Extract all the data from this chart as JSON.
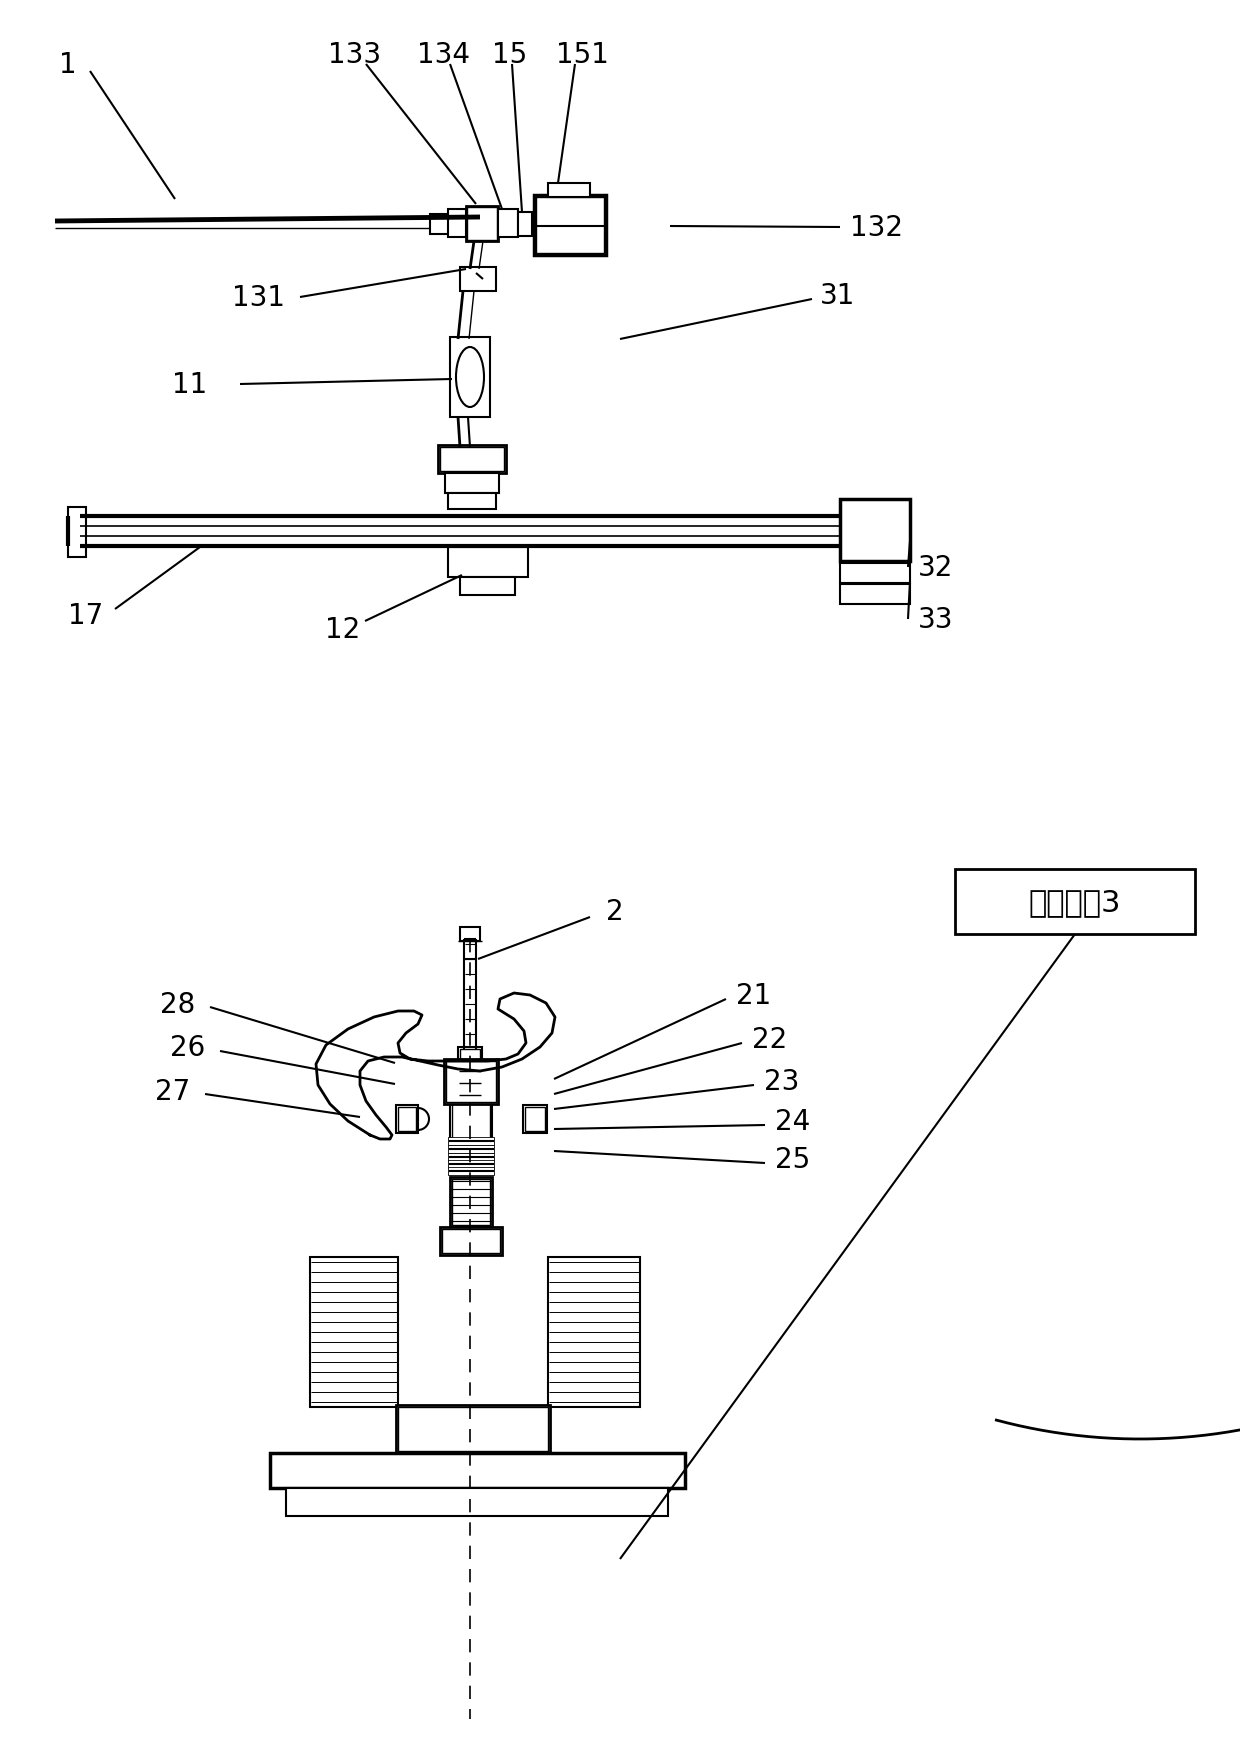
{
  "bg": "#ffffff",
  "lc": "#000000",
  "box_label": "主控制剹3",
  "fs": 20
}
